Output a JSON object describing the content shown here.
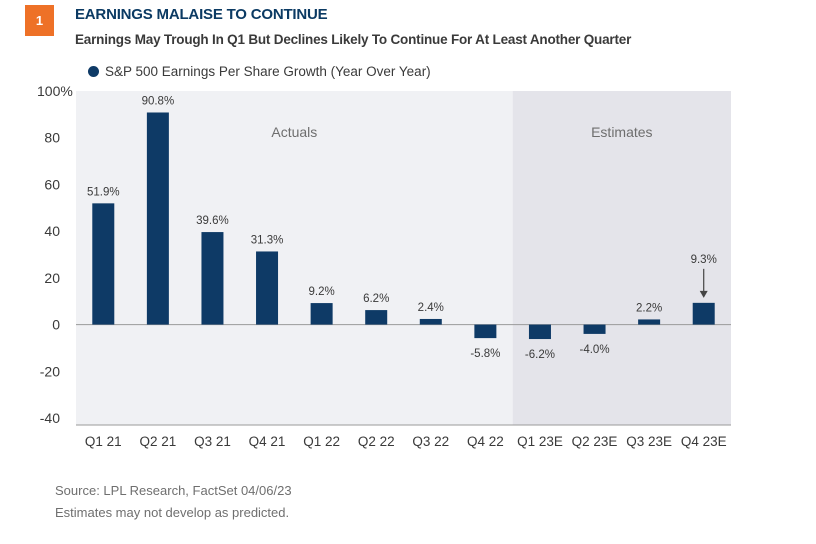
{
  "header": {
    "badge": "1",
    "title": "EARNINGS MALAISE TO CONTINUE",
    "subtitle": "Earnings May Trough In Q1 But Declines Likely To Continue For At Least Another Quarter"
  },
  "footer": {
    "source": "Source: LPL Research, FactSet  04/06/23",
    "disclaimer": "Estimates may not develop as predicted."
  },
  "colors": {
    "bar": "#0e3a66",
    "actuals_bg": "#f0f1f4",
    "estimates_bg": "#e4e4ea",
    "badge": "#ee7127",
    "title": "#0b3a63"
  },
  "chart_data": {
    "type": "bar",
    "title": "EARNINGS MALAISE TO CONTINUE",
    "subtitle": "Earnings May Trough In Q1 But Declines Likely To Continue For At Least Another Quarter",
    "xlabel": "",
    "ylabel": "",
    "categories": [
      "Q1 21",
      "Q2 21",
      "Q3 21",
      "Q4 21",
      "Q1 22",
      "Q2 22",
      "Q3 22",
      "Q4 22",
      "Q1 23E",
      "Q2 23E",
      "Q3 23E",
      "Q4 23E"
    ],
    "series": [
      {
        "name": "S&P 500 Earnings Per Share Growth (Year Over Year)",
        "values": [
          51.9,
          90.8,
          39.6,
          31.3,
          9.2,
          6.2,
          2.4,
          -5.8,
          -6.2,
          -4.0,
          2.2,
          9.3
        ],
        "labels": [
          "51.9%",
          "90.8%",
          "39.6%",
          "31.3%",
          "9.2%",
          "6.2%",
          "2.4%",
          "-5.8%",
          "-6.2%",
          "-4.0%",
          "2.2%",
          "9.3%"
        ]
      }
    ],
    "ylim": [
      -43,
      100
    ],
    "yticks": [
      100,
      80,
      60,
      40,
      20,
      0,
      -20,
      -40
    ],
    "ytick_labels": [
      "100%",
      "80",
      "60",
      "40",
      "20",
      "0",
      "-20",
      "-40"
    ],
    "regions": [
      {
        "label": "Actuals",
        "from_index": 0,
        "to_index": 7
      },
      {
        "label": "Estimates",
        "from_index": 8,
        "to_index": 11
      }
    ],
    "annotations": [
      {
        "type": "arrow",
        "target": "Q4 23E",
        "text": "9.3%"
      }
    ],
    "legend": "top-left",
    "grid": false
  }
}
